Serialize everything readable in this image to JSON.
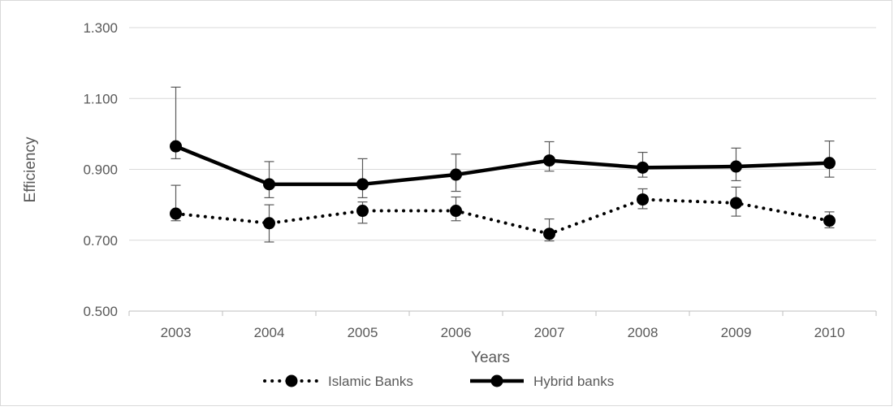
{
  "chart_data": {
    "type": "line",
    "categories": [
      "2003",
      "2004",
      "2005",
      "2006",
      "2007",
      "2008",
      "2009",
      "2010"
    ],
    "series": [
      {
        "name": "Islamic Banks",
        "values": [
          0.775,
          0.748,
          0.783,
          0.783,
          0.718,
          0.815,
          0.805,
          0.755
        ],
        "error_low": [
          0.755,
          0.695,
          0.748,
          0.755,
          0.698,
          0.789,
          0.768,
          0.735
        ],
        "error_high": [
          0.855,
          0.8,
          0.808,
          0.822,
          0.76,
          0.845,
          0.85,
          0.78
        ],
        "style": "dotted",
        "color": "#000000"
      },
      {
        "name": "Hybrid banks",
        "values": [
          0.965,
          0.858,
          0.858,
          0.885,
          0.925,
          0.905,
          0.908,
          0.918
        ],
        "error_low": [
          0.93,
          0.82,
          0.82,
          0.838,
          0.895,
          0.878,
          0.868,
          0.878
        ],
        "error_high": [
          1.132,
          0.922,
          0.93,
          0.943,
          0.978,
          0.948,
          0.96,
          0.98
        ],
        "style": "solid",
        "color": "#000000"
      }
    ],
    "title": "",
    "xlabel": "Years",
    "ylabel": "Efficiency",
    "ylim": [
      0.5,
      1.3
    ],
    "yticks": [
      "0.500",
      "0.700",
      "0.900",
      "1.100",
      "1.300"
    ],
    "grid": true,
    "legend_position": "bottom",
    "grid_color": "#d9d9d9",
    "axis_color": "#bfbfbf",
    "text_color": "#595959"
  }
}
